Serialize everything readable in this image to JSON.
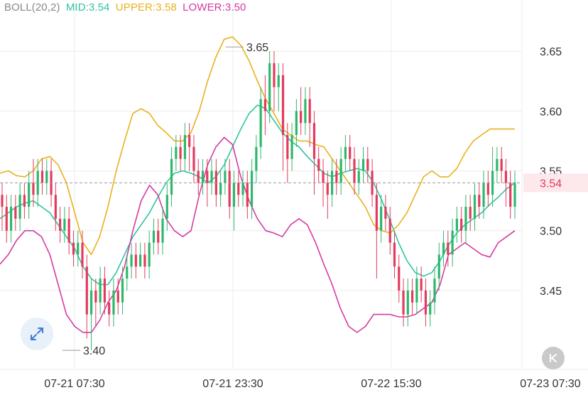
{
  "indicator": {
    "name": "BOLL(20,2)",
    "mid_label": "MID:3.54",
    "upper_label": "UPPER:3.58",
    "lower_label": "LOWER:3.50"
  },
  "colors": {
    "up": "#2db86b",
    "down": "#e23b5e",
    "mid": "#2ec4a0",
    "upper": "#e8b21c",
    "lower": "#d63aa2",
    "grid": "#ececec",
    "text": "#333333",
    "price_tag_bg": "#fde8ec",
    "price_tag_text": "#e23b5e",
    "legend_name": "#888888",
    "expand_icon": "#3d7ad6"
  },
  "icons": {
    "expand": "expand-arrows-icon",
    "rewind": "skip-to-latest-icon"
  },
  "chart_data": {
    "type": "candlestick",
    "y_ticks": [
      "3.65",
      "3.60",
      "3.55",
      "3.50",
      "3.45"
    ],
    "y_range": [
      3.39,
      3.675
    ],
    "x_ticks": [
      "07-21 07:30",
      "07-21 23:30",
      "07-22 15:30",
      "07-23 07:30"
    ],
    "current_price": "3.54",
    "high_label": "3.65",
    "low_label": "3.40",
    "candles": [
      [
        3.53,
        3.52,
        3.54,
        3.5
      ],
      [
        3.52,
        3.5,
        3.53,
        3.49
      ],
      [
        3.5,
        3.52,
        3.53,
        3.49
      ],
      [
        3.52,
        3.51,
        3.53,
        3.5
      ],
      [
        3.51,
        3.53,
        3.54,
        3.5
      ],
      [
        3.53,
        3.52,
        3.54,
        3.51
      ],
      [
        3.52,
        3.54,
        3.55,
        3.51
      ],
      [
        3.54,
        3.53,
        3.56,
        3.52
      ],
      [
        3.53,
        3.55,
        3.56,
        3.52
      ],
      [
        3.55,
        3.54,
        3.56,
        3.53
      ],
      [
        3.54,
        3.55,
        3.56,
        3.53
      ],
      [
        3.55,
        3.53,
        3.56,
        3.52
      ],
      [
        3.53,
        3.51,
        3.54,
        3.5
      ],
      [
        3.51,
        3.5,
        3.52,
        3.49
      ],
      [
        3.5,
        3.51,
        3.52,
        3.49
      ],
      [
        3.51,
        3.49,
        3.52,
        3.48
      ],
      [
        3.49,
        3.48,
        3.5,
        3.47
      ],
      [
        3.48,
        3.49,
        3.5,
        3.47
      ],
      [
        3.49,
        3.47,
        3.5,
        3.46
      ],
      [
        3.47,
        3.43,
        3.48,
        3.41
      ],
      [
        3.43,
        3.45,
        3.46,
        3.4
      ],
      [
        3.45,
        3.44,
        3.46,
        3.42
      ],
      [
        3.44,
        3.46,
        3.47,
        3.43
      ],
      [
        3.46,
        3.44,
        3.47,
        3.43
      ],
      [
        3.44,
        3.43,
        3.45,
        3.42
      ],
      [
        3.43,
        3.45,
        3.46,
        3.42
      ],
      [
        3.45,
        3.44,
        3.46,
        3.43
      ],
      [
        3.44,
        3.46,
        3.47,
        3.43
      ],
      [
        3.46,
        3.47,
        3.48,
        3.45
      ],
      [
        3.47,
        3.48,
        3.49,
        3.46
      ],
      [
        3.48,
        3.47,
        3.49,
        3.46
      ],
      [
        3.47,
        3.48,
        3.49,
        3.47
      ],
      [
        3.48,
        3.47,
        3.49,
        3.46
      ],
      [
        3.47,
        3.49,
        3.5,
        3.46
      ],
      [
        3.49,
        3.5,
        3.51,
        3.48
      ],
      [
        3.5,
        3.49,
        3.51,
        3.48
      ],
      [
        3.49,
        3.51,
        3.52,
        3.48
      ],
      [
        3.51,
        3.53,
        3.54,
        3.5
      ],
      [
        3.53,
        3.56,
        3.57,
        3.52
      ],
      [
        3.56,
        3.57,
        3.58,
        3.55
      ],
      [
        3.57,
        3.56,
        3.58,
        3.55
      ],
      [
        3.56,
        3.58,
        3.59,
        3.55
      ],
      [
        3.58,
        3.57,
        3.59,
        3.55
      ],
      [
        3.57,
        3.55,
        3.58,
        3.54
      ],
      [
        3.55,
        3.54,
        3.56,
        3.53
      ],
      [
        3.54,
        3.55,
        3.56,
        3.53
      ],
      [
        3.55,
        3.54,
        3.56,
        3.52
      ],
      [
        3.54,
        3.55,
        3.56,
        3.53
      ],
      [
        3.55,
        3.53,
        3.56,
        3.52
      ],
      [
        3.53,
        3.54,
        3.55,
        3.52
      ],
      [
        3.54,
        3.55,
        3.56,
        3.53
      ],
      [
        3.55,
        3.52,
        3.56,
        3.51
      ],
      [
        3.52,
        3.54,
        3.55,
        3.5
      ],
      [
        3.54,
        3.53,
        3.55,
        3.52
      ],
      [
        3.53,
        3.54,
        3.55,
        3.52
      ],
      [
        3.54,
        3.52,
        3.55,
        3.51
      ],
      [
        3.52,
        3.55,
        3.56,
        3.51
      ],
      [
        3.55,
        3.57,
        3.58,
        3.54
      ],
      [
        3.57,
        3.61,
        3.62,
        3.56
      ],
      [
        3.61,
        3.6,
        3.63,
        3.58
      ],
      [
        3.6,
        3.64,
        3.65,
        3.59
      ],
      [
        3.64,
        3.62,
        3.65,
        3.6
      ],
      [
        3.62,
        3.63,
        3.64,
        3.6
      ],
      [
        3.63,
        3.58,
        3.64,
        3.55
      ],
      [
        3.58,
        3.56,
        3.59,
        3.54
      ],
      [
        3.56,
        3.58,
        3.59,
        3.55
      ],
      [
        3.58,
        3.6,
        3.61,
        3.57
      ],
      [
        3.6,
        3.59,
        3.62,
        3.58
      ],
      [
        3.59,
        3.61,
        3.62,
        3.58
      ],
      [
        3.61,
        3.59,
        3.62,
        3.57
      ],
      [
        3.59,
        3.56,
        3.6,
        3.53
      ],
      [
        3.56,
        3.55,
        3.57,
        3.54
      ],
      [
        3.55,
        3.54,
        3.56,
        3.52
      ],
      [
        3.54,
        3.53,
        3.55,
        3.51
      ],
      [
        3.53,
        3.55,
        3.56,
        3.52
      ],
      [
        3.55,
        3.54,
        3.56,
        3.53
      ],
      [
        3.54,
        3.56,
        3.57,
        3.53
      ],
      [
        3.56,
        3.57,
        3.58,
        3.55
      ],
      [
        3.57,
        3.56,
        3.58,
        3.55
      ],
      [
        3.56,
        3.54,
        3.57,
        3.53
      ],
      [
        3.54,
        3.55,
        3.56,
        3.53
      ],
      [
        3.55,
        3.56,
        3.57,
        3.54
      ],
      [
        3.56,
        3.55,
        3.57,
        3.54
      ],
      [
        3.55,
        3.53,
        3.56,
        3.52
      ],
      [
        3.53,
        3.5,
        3.54,
        3.46
      ],
      [
        3.5,
        3.52,
        3.53,
        3.49
      ],
      [
        3.52,
        3.51,
        3.53,
        3.5
      ],
      [
        3.51,
        3.49,
        3.52,
        3.48
      ],
      [
        3.49,
        3.47,
        3.5,
        3.46
      ],
      [
        3.47,
        3.45,
        3.48,
        3.44
      ],
      [
        3.45,
        3.43,
        3.46,
        3.42
      ],
      [
        3.43,
        3.45,
        3.46,
        3.42
      ],
      [
        3.45,
        3.44,
        3.46,
        3.43
      ],
      [
        3.44,
        3.46,
        3.47,
        3.43
      ],
      [
        3.46,
        3.45,
        3.47,
        3.44
      ],
      [
        3.45,
        3.43,
        3.46,
        3.42
      ],
      [
        3.43,
        3.44,
        3.45,
        3.42
      ],
      [
        3.44,
        3.46,
        3.47,
        3.43
      ],
      [
        3.46,
        3.48,
        3.49,
        3.45
      ],
      [
        3.48,
        3.49,
        3.5,
        3.47
      ],
      [
        3.49,
        3.48,
        3.5,
        3.47
      ],
      [
        3.48,
        3.5,
        3.51,
        3.47
      ],
      [
        3.5,
        3.51,
        3.52,
        3.49
      ],
      [
        3.51,
        3.5,
        3.52,
        3.49
      ],
      [
        3.5,
        3.52,
        3.53,
        3.49
      ],
      [
        3.52,
        3.51,
        3.53,
        3.5
      ],
      [
        3.51,
        3.53,
        3.54,
        3.5
      ],
      [
        3.53,
        3.52,
        3.54,
        3.51
      ],
      [
        3.52,
        3.54,
        3.55,
        3.51
      ],
      [
        3.54,
        3.53,
        3.55,
        3.52
      ],
      [
        3.53,
        3.55,
        3.57,
        3.52
      ],
      [
        3.55,
        3.56,
        3.57,
        3.54
      ],
      [
        3.56,
        3.55,
        3.57,
        3.54
      ],
      [
        3.55,
        3.54,
        3.56,
        3.52
      ],
      [
        3.54,
        3.52,
        3.55,
        3.51
      ],
      [
        3.52,
        3.54,
        3.55,
        3.51
      ]
    ],
    "series": [
      {
        "name": "MID",
        "values": [
          3.51,
          3.515,
          3.52,
          3.523,
          3.525,
          3.52,
          3.515,
          3.505,
          3.495,
          3.485,
          3.47,
          3.46,
          3.455,
          3.455,
          3.465,
          3.48,
          3.495,
          3.505,
          3.515,
          3.528,
          3.54,
          3.548,
          3.55,
          3.548,
          3.545,
          3.54,
          3.545,
          3.555,
          3.57,
          3.585,
          3.598,
          3.605,
          3.602,
          3.592,
          3.582,
          3.575,
          3.57,
          3.562,
          3.555,
          3.548,
          3.545,
          3.548,
          3.55,
          3.552,
          3.55,
          3.54,
          3.525,
          3.508,
          3.49,
          3.475,
          3.465,
          3.462,
          3.465,
          3.475,
          3.488,
          3.498,
          3.505,
          3.51,
          3.515,
          3.522,
          3.528,
          3.535,
          3.54
        ]
      },
      {
        "name": "UPPER",
        "values": [
          3.548,
          3.55,
          3.546,
          3.545,
          3.55,
          3.56,
          3.562,
          3.555,
          3.54,
          3.515,
          3.49,
          3.48,
          3.495,
          3.52,
          3.55,
          3.575,
          3.598,
          3.602,
          3.598,
          3.588,
          3.582,
          3.575,
          3.575,
          3.582,
          3.6,
          3.625,
          3.645,
          3.66,
          3.662,
          3.655,
          3.642,
          3.625,
          3.61,
          3.598,
          3.585,
          3.58,
          3.575,
          3.575,
          3.572,
          3.57,
          3.56,
          3.55,
          3.54,
          3.53,
          3.52,
          3.505,
          3.5,
          3.498,
          3.505,
          3.515,
          3.53,
          3.545,
          3.55,
          3.545,
          3.545,
          3.552,
          3.565,
          3.575,
          3.58,
          3.585,
          3.585,
          3.585,
          3.585
        ]
      },
      {
        "name": "LOWER",
        "values": [
          3.472,
          3.48,
          3.492,
          3.5,
          3.5,
          3.495,
          3.48,
          3.455,
          3.43,
          3.42,
          3.415,
          3.415,
          3.425,
          3.44,
          3.45,
          3.47,
          3.5,
          3.525,
          3.538,
          3.53,
          3.51,
          3.5,
          3.495,
          3.5,
          3.53,
          3.555,
          3.57,
          3.578,
          3.572,
          3.545,
          3.525,
          3.51,
          3.5,
          3.498,
          3.495,
          3.505,
          3.51,
          3.505,
          3.49,
          3.472,
          3.455,
          3.435,
          3.42,
          3.415,
          3.42,
          3.43,
          3.43,
          3.43,
          3.428,
          3.428,
          3.43,
          3.435,
          3.44,
          3.455,
          3.48,
          3.485,
          3.49,
          3.485,
          3.48,
          3.478,
          3.49,
          3.495,
          3.5
        ]
      }
    ]
  }
}
